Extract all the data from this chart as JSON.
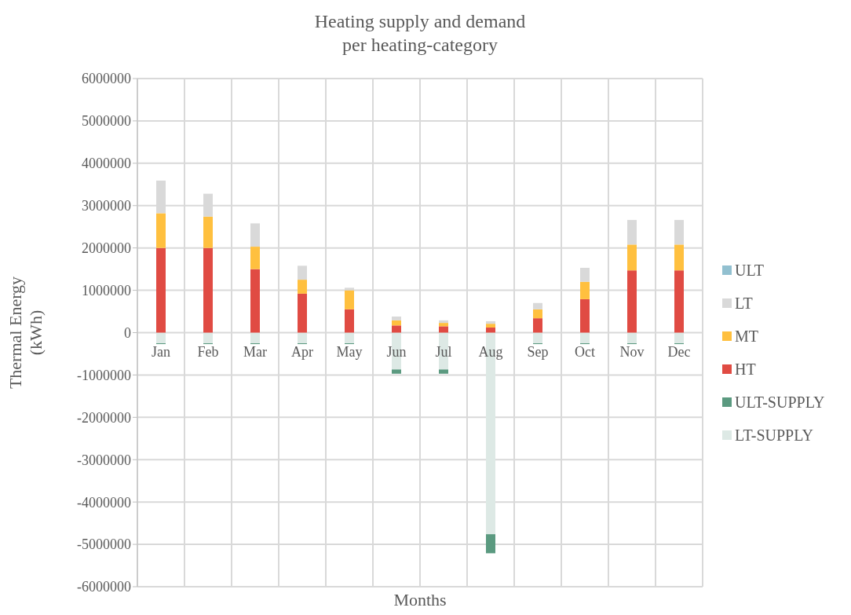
{
  "chart_data": {
    "type": "bar",
    "title": "Heating supply and demand\nper heating-category",
    "xlabel": "Months",
    "ylabel": "Thermal Energy\n(kWh)",
    "categories": [
      "Jan",
      "Feb",
      "Mar",
      "Apr",
      "May",
      "Jun",
      "Jul",
      "Aug",
      "Sep",
      "Oct",
      "Nov",
      "Dec"
    ],
    "stacked": true,
    "series": [
      {
        "name": "LT-SUPPLY",
        "color": "#dde9e5",
        "values": [
          -250000,
          -250000,
          -250000,
          -250000,
          -250000,
          -870000,
          -870000,
          -4760000,
          -250000,
          -250000,
          -250000,
          -250000
        ]
      },
      {
        "name": "ULT-SUPPLY",
        "color": "#5b9a80",
        "values": [
          -20000,
          -20000,
          -20000,
          -20000,
          -20000,
          -100000,
          -100000,
          -450000,
          -20000,
          -20000,
          -20000,
          -20000
        ]
      },
      {
        "name": "HT",
        "color": "#e04b43",
        "values": [
          2000000,
          2000000,
          1500000,
          920000,
          550000,
          170000,
          150000,
          120000,
          340000,
          790000,
          1470000,
          1470000
        ]
      },
      {
        "name": "MT",
        "color": "#ffc03f",
        "values": [
          820000,
          740000,
          530000,
          330000,
          450000,
          120000,
          80000,
          90000,
          210000,
          410000,
          610000,
          610000
        ]
      },
      {
        "name": "LT",
        "color": "#d9d9d9",
        "values": [
          770000,
          540000,
          550000,
          330000,
          60000,
          90000,
          60000,
          60000,
          150000,
          330000,
          580000,
          580000
        ]
      },
      {
        "name": "ULT",
        "color": "#92c0d0",
        "values": [
          0,
          0,
          0,
          0,
          0,
          0,
          0,
          0,
          0,
          0,
          0,
          0
        ]
      }
    ],
    "ylim": [
      -6000000,
      6000000
    ],
    "yticks": [
      -6000000,
      -5000000,
      -4000000,
      -3000000,
      -2000000,
      -1000000,
      0,
      1000000,
      2000000,
      3000000,
      4000000,
      5000000,
      6000000
    ],
    "grid": true,
    "legend": "right"
  }
}
